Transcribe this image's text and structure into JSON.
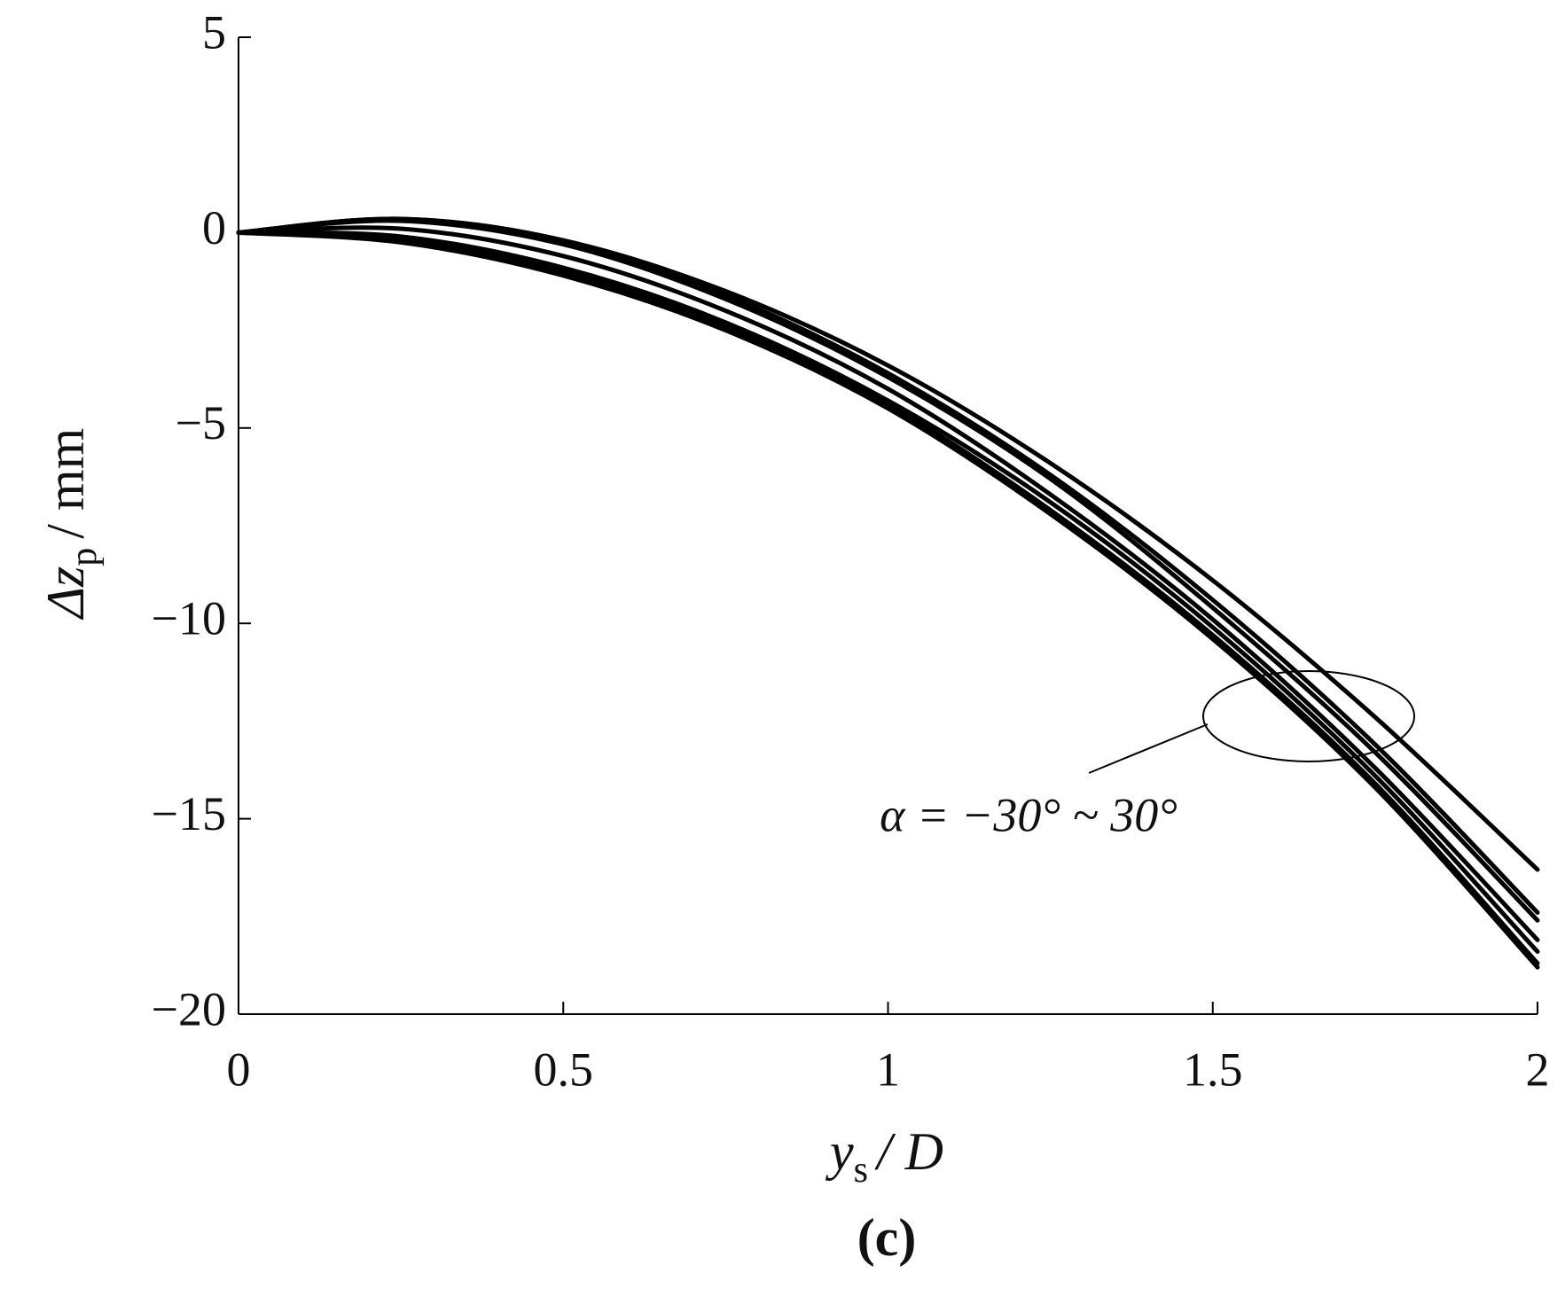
{
  "chart_data": {
    "type": "line",
    "xlabel": {
      "base": "y",
      "sub": "s",
      "rest": "/ D"
    },
    "ylabel": {
      "base": "Δz",
      "sub": "p",
      "rest": "/ mm"
    },
    "annotation": "α = −30° ~ 30°",
    "caption": "(c)",
    "x": [
      0,
      0.25,
      0.5,
      0.75,
      1,
      1.25,
      1.5,
      1.75,
      2
    ],
    "series": [
      {
        "color": "#000000",
        "values": [
          0,
          0.35,
          -0.2,
          -1.5,
          -3.4,
          -5.9,
          -8.9,
          -12.4,
          -16.3
        ]
      },
      {
        "color": "#000000",
        "values": [
          0,
          0.35,
          -0.2,
          -1.6,
          -3.6,
          -6.2,
          -9.4,
          -13.1,
          -17.4
        ]
      },
      {
        "color": "#000000",
        "values": [
          0,
          0.3,
          -0.3,
          -1.7,
          -3.7,
          -6.3,
          -9.6,
          -13.3,
          -17.6
        ]
      },
      {
        "color": "#000000",
        "values": [
          0,
          0.1,
          -0.6,
          -2.0,
          -4.0,
          -6.7,
          -9.9,
          -13.7,
          -18.1
        ]
      },
      {
        "color": "#000000",
        "values": [
          0,
          -0.1,
          -0.9,
          -2.3,
          -4.3,
          -6.9,
          -10.1,
          -13.9,
          -18.4
        ]
      },
      {
        "color": "#000000",
        "values": [
          0,
          -0.2,
          -1.0,
          -2.4,
          -4.4,
          -7.1,
          -10.3,
          -14.1,
          -18.7
        ]
      },
      {
        "color": "#000000",
        "values": [
          0,
          -0.25,
          -1.1,
          -2.5,
          -4.5,
          -7.2,
          -10.4,
          -14.2,
          -18.8
        ]
      }
    ],
    "xlim": [
      0,
      2
    ],
    "xticks": [
      0,
      0.5,
      1,
      1.5,
      2
    ],
    "ylim": [
      -20,
      5
    ],
    "yticks": [
      {
        "value": -20,
        "label": "−20"
      },
      {
        "value": -15,
        "label": "−15"
      },
      {
        "value": -10,
        "label": "−10"
      },
      {
        "value": -5,
        "label": "−5"
      },
      0,
      5
    ],
    "grid": false
  }
}
